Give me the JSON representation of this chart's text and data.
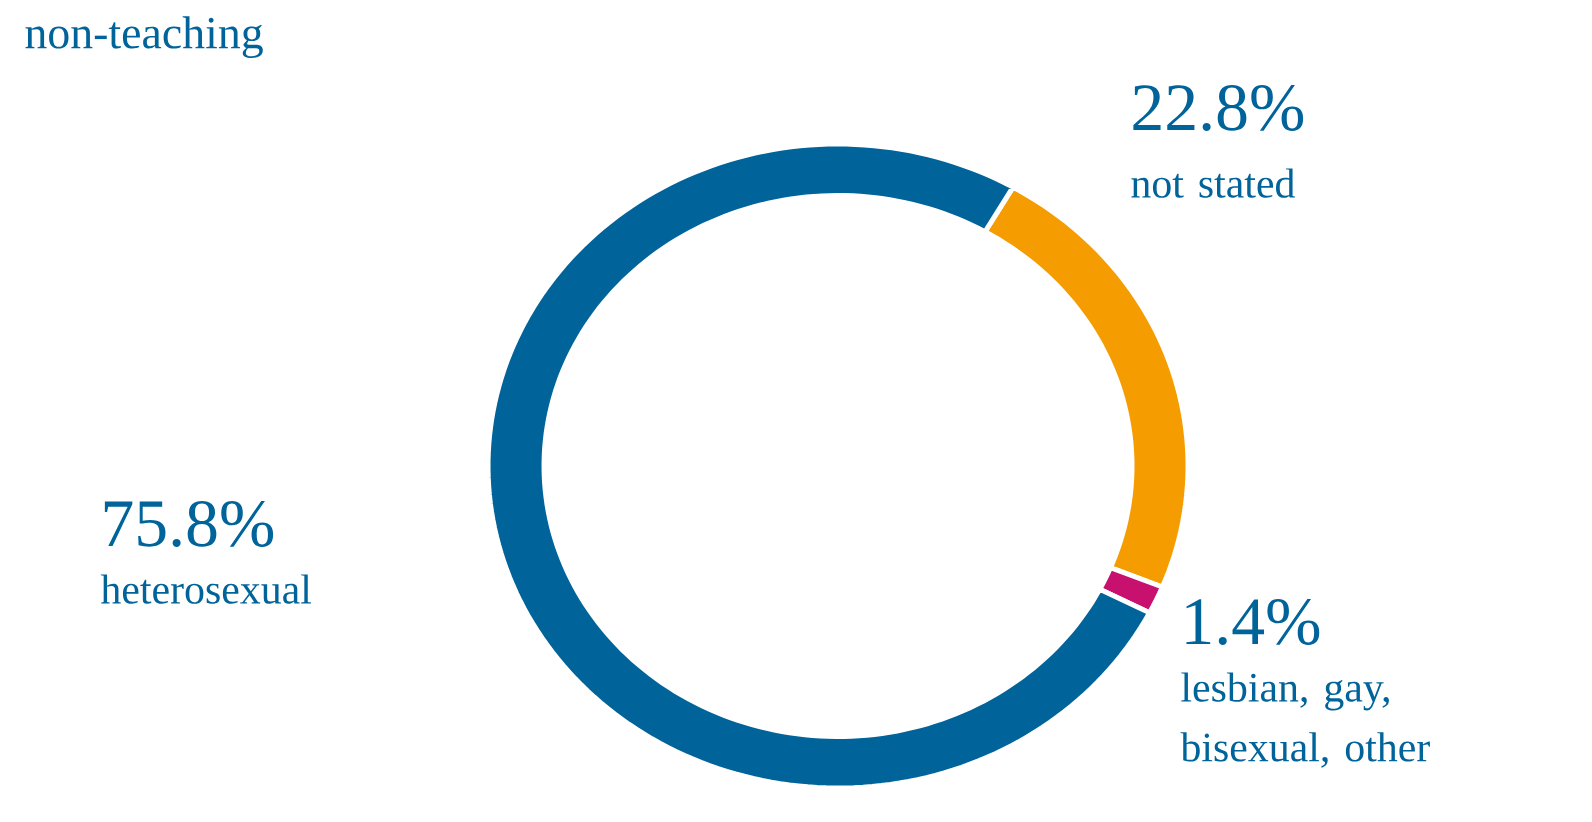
{
  "chart_data": {
    "type": "donut",
    "title": "non-teaching",
    "categories": [
      "not stated",
      "lesbian, gay, bisexual, other",
      "heterosexual"
    ],
    "values": [
      22.8,
      1.4,
      75.8
    ],
    "value_labels": [
      "22.8%",
      "1.4%",
      "75.8%"
    ],
    "colors": [
      "#f59c00",
      "#c8106e",
      "#00649a"
    ]
  }
}
